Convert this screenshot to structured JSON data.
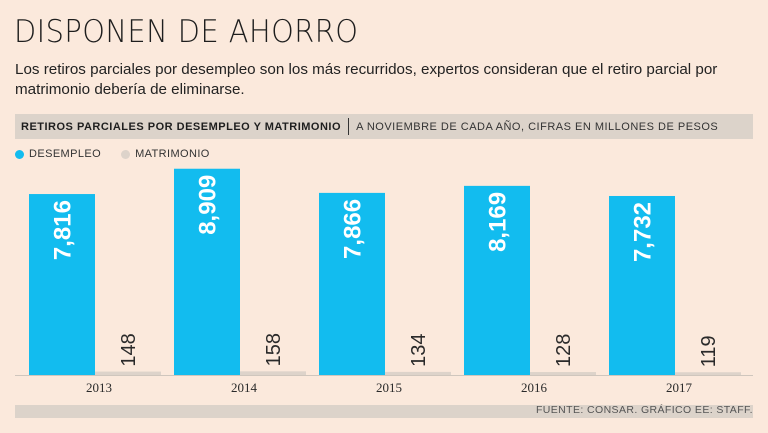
{
  "header": {
    "title": "DISPONEN DE AHORRO",
    "subtitle": "Los retiros parciales por desempleo son los más recurridos, expertos consideran que el retiro parcial por matrimonio debería de eliminarse."
  },
  "chart_header": {
    "main": "RETIROS PARCIALES POR DESEMPLEO Y MATRIMONIO",
    "sub": "A NOVIEMBRE DE CADA AÑO, CIFRAS EN MILLONES DE PESOS"
  },
  "colors": {
    "desempleo": "#12bcef",
    "matrimonio": "#ddd3ca"
  },
  "chart_data": {
    "type": "bar",
    "categories": [
      "2013",
      "2014",
      "2015",
      "2016",
      "2017"
    ],
    "series": [
      {
        "name": "DESEMPLEO",
        "values": [
          7816,
          8909,
          7866,
          8169,
          7732
        ],
        "labels": [
          "7,816",
          "8,909",
          "7,866",
          "8,169",
          "7,732"
        ]
      },
      {
        "name": "MATRIMONIO",
        "values": [
          148,
          158,
          134,
          128,
          119
        ],
        "labels": [
          "148",
          "158",
          "134",
          "128",
          "119"
        ]
      }
    ],
    "legend_position": "top-left",
    "grid": false
  },
  "source": "FUENTE: CONSAR. GRÁFICO EE: STAFF."
}
